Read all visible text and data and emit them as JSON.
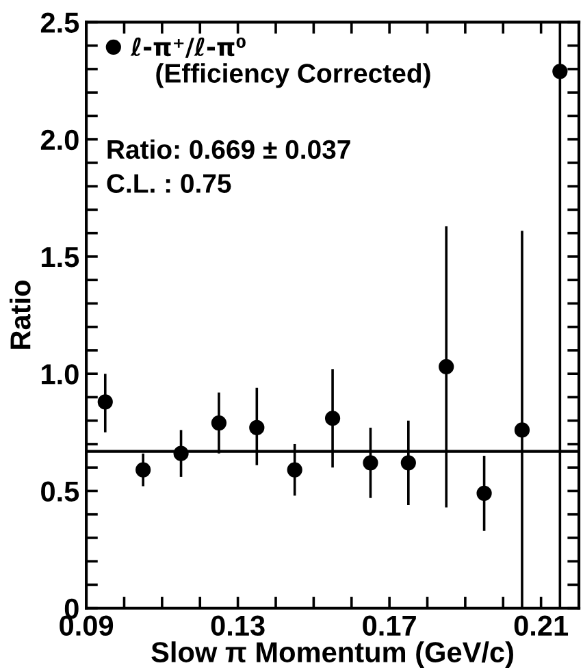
{
  "chart_data": {
    "type": "scatter",
    "xlabel": "Slow π Momentum (GeV/c)",
    "ylabel": "Ratio",
    "x": [
      0.095,
      0.105,
      0.115,
      0.125,
      0.135,
      0.145,
      0.155,
      0.165,
      0.175,
      0.185,
      0.195,
      0.205,
      0.215
    ],
    "series": [
      {
        "name": "ℓ-π⁺/ℓ-π⁰",
        "color": "#000000",
        "values": [
          0.88,
          0.59,
          0.66,
          0.79,
          0.77,
          0.59,
          0.81,
          0.62,
          0.62,
          1.03,
          0.49,
          0.76,
          2.29
        ],
        "errors": [
          [
            0.75,
            1.0
          ],
          [
            0.52,
            0.66
          ],
          [
            0.56,
            0.76
          ],
          [
            0.66,
            0.92
          ],
          [
            0.61,
            0.94
          ],
          [
            0.48,
            0.7
          ],
          [
            0.6,
            1.02
          ],
          [
            0.47,
            0.77
          ],
          [
            0.44,
            0.8
          ],
          [
            0.43,
            1.63
          ],
          [
            0.33,
            0.65
          ],
          [
            0,
            1.61
          ],
          [
            0,
            2.5
          ]
        ]
      }
    ],
    "marker": "circle",
    "legend": "top left",
    "annotations": [
      "(Efficiency Corrected)",
      "Ratio: 0.669 ± 0.037",
      "C.L. : 0.75"
    ],
    "ref_lines": [
      {
        "axis": "y",
        "value": 0.669,
        "color": "#000000"
      }
    ],
    "xlim": [
      0.09,
      0.22
    ],
    "xticks": [
      0.09,
      {
        "value": 0.1,
        "label": null
      },
      {
        "value": 0.11,
        "label": null
      },
      {
        "value": 0.12,
        "label": null
      },
      0.13,
      {
        "value": 0.14,
        "label": null
      },
      {
        "value": 0.15,
        "label": null
      },
      {
        "value": 0.16,
        "label": null
      },
      0.17,
      {
        "value": 0.18,
        "label": null
      },
      {
        "value": 0.19,
        "label": null
      },
      {
        "value": 0.2,
        "label": null
      },
      0.21
    ],
    "ylim": [
      0,
      2.5
    ],
    "yticks": [
      0,
      {
        "value": 0.1,
        "label": null
      },
      {
        "value": 0.2,
        "label": null
      },
      {
        "value": 0.3,
        "label": null
      },
      {
        "value": 0.4,
        "label": null
      },
      0.5,
      {
        "value": 0.6,
        "label": null
      },
      {
        "value": 0.7,
        "label": null
      },
      {
        "value": 0.8,
        "label": null
      },
      {
        "value": 0.9,
        "label": null
      },
      {
        "value": 1.0,
        "label": "1.0"
      },
      {
        "value": 1.1,
        "label": null
      },
      {
        "value": 1.2,
        "label": null
      },
      {
        "value": 1.3,
        "label": null
      },
      {
        "value": 1.4,
        "label": null
      },
      1.5,
      {
        "value": 1.6,
        "label": null
      },
      {
        "value": 1.7,
        "label": null
      },
      {
        "value": 1.8,
        "label": null
      },
      {
        "value": 1.9,
        "label": null
      },
      {
        "value": 2.0,
        "label": "2.0"
      },
      {
        "value": 2.1,
        "label": null
      },
      {
        "value": 2.2,
        "label": null
      },
      {
        "value": 2.3,
        "label": null
      },
      {
        "value": 2.4,
        "label": null
      },
      2.5
    ],
    "grid": false
  }
}
